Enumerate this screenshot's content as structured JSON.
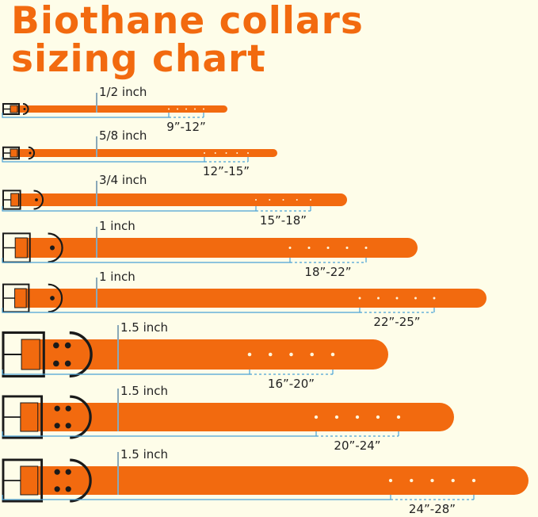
{
  "title": {
    "line1": "Biothane collars",
    "line2": "sizing chart"
  },
  "colors": {
    "collar": "#f26a0f",
    "hardware": "#1a1a1a",
    "measure_line": "#4aa3d6",
    "background": "#fefde9",
    "title": "#f26a0f"
  },
  "collars": [
    {
      "width": "1/2 inch",
      "size": "9”-12”"
    },
    {
      "width": "5/8 inch",
      "size": "12”-15”"
    },
    {
      "width": "3/4 inch",
      "size": "15”-18”"
    },
    {
      "width": "1 inch",
      "size": "18”-22”"
    },
    {
      "width": "1 inch",
      "size": "22”-25”"
    },
    {
      "width": "1.5 inch",
      "size": "16”-20”"
    },
    {
      "width": "1.5 inch",
      "size": "20”-24”"
    },
    {
      "width": "1.5 inch",
      "size": "24”-28”"
    }
  ]
}
